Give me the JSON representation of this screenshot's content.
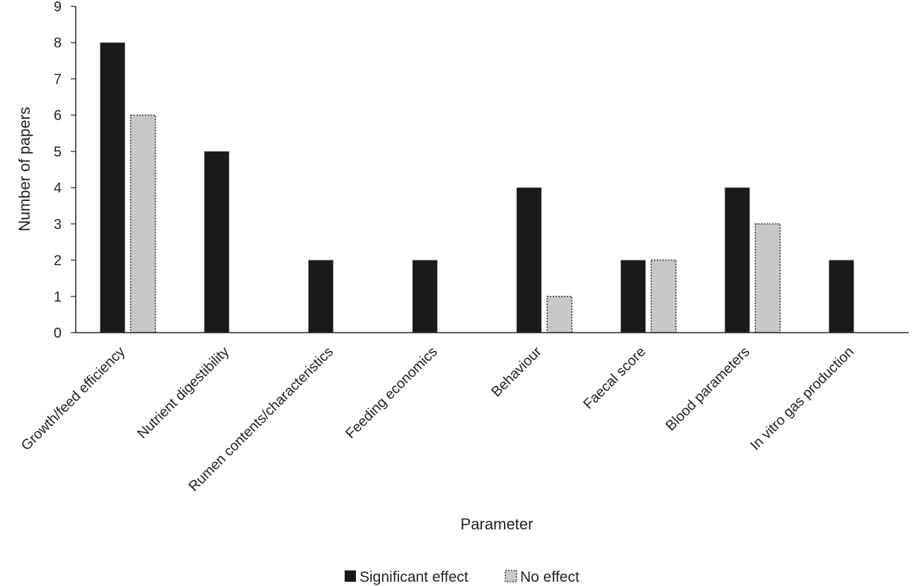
{
  "chart_data": {
    "type": "bar",
    "title": "",
    "xlabel": "Parameter",
    "ylabel": "Number of papers",
    "ylim": [
      0,
      9
    ],
    "yticks": [
      0,
      1,
      2,
      3,
      4,
      5,
      6,
      7,
      8,
      9
    ],
    "grid": false,
    "legend_position": "bottom",
    "categories": [
      "Growth/feed efficiency",
      "Nutrient digestibility",
      "Rumen contents/characteristics",
      "Feeding economics",
      "Behaviour",
      "Faecal score",
      "Blood parameters",
      "In vitro gas production"
    ],
    "series": [
      {
        "name": "Significant effect",
        "color": "#1a1a1a",
        "values": [
          8,
          5,
          2,
          2,
          4,
          2,
          4,
          2
        ]
      },
      {
        "name": "No effect",
        "color": "#c8c8c8",
        "values": [
          6,
          0,
          0,
          0,
          1,
          2,
          3,
          0
        ]
      }
    ]
  }
}
